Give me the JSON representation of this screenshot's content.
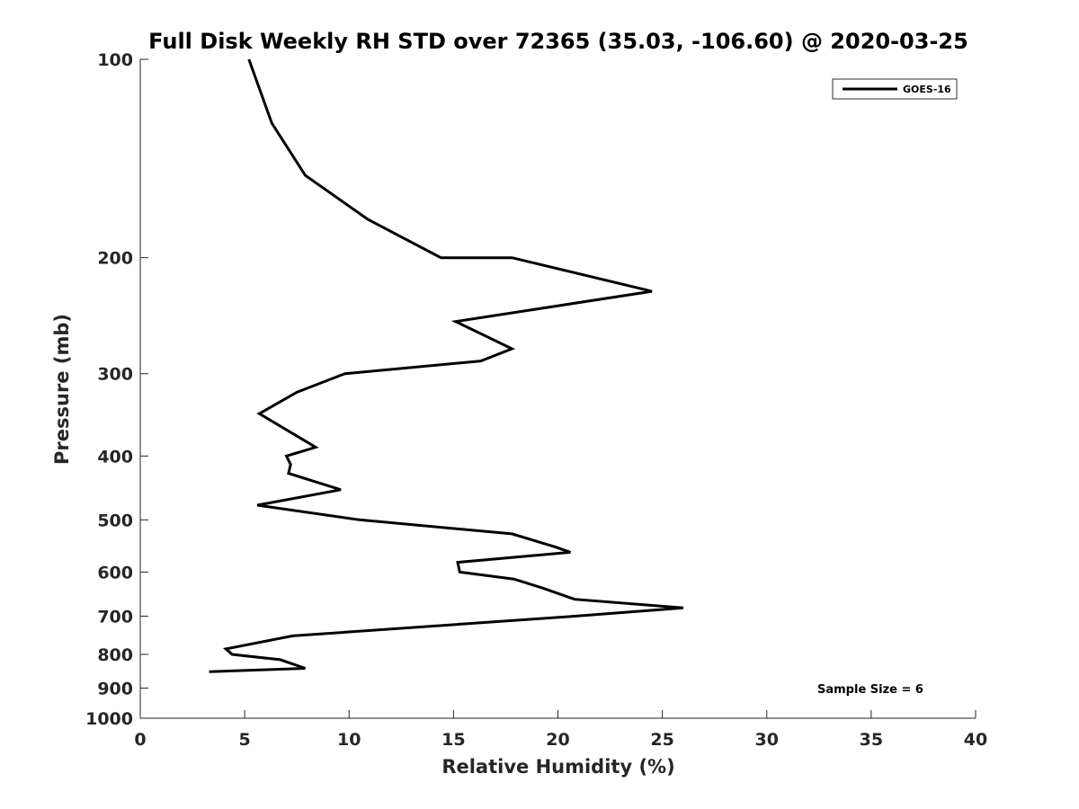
{
  "chart_data": {
    "type": "line",
    "title": "Full Disk Weekly RH STD over 72365 (35.03, -106.60) @ 2020-03-25",
    "xlabel": "Relative Humidity (%)",
    "ylabel": "Pressure (mb)",
    "xlim": [
      0,
      40
    ],
    "ylim": [
      100,
      1000
    ],
    "yscale": "log",
    "y_reversed": true,
    "grid": false,
    "x_ticks": [
      0,
      5,
      10,
      15,
      20,
      25,
      30,
      35,
      40
    ],
    "y_ticks": [
      100,
      200,
      300,
      400,
      500,
      600,
      700,
      800,
      900,
      1000
    ],
    "legend": {
      "position": "top-right",
      "entries": [
        "GOES-16"
      ]
    },
    "annotation": "Sample Size = 6",
    "series": [
      {
        "name": "GOES-16",
        "color": "#000000",
        "x": [
          5.2,
          6.3,
          7.9,
          10.9,
          14.4,
          17.8,
          24.5,
          15.1,
          17.8,
          16.3,
          9.8,
          7.5,
          5.7,
          8.4,
          7.0,
          7.2,
          7.1,
          9.6,
          5.6,
          10.5,
          17.8,
          19.9,
          20.6,
          15.2,
          15.3,
          17.9,
          19.3,
          20.8,
          26.0,
          20.8,
          7.3,
          4.1,
          4.4,
          6.7,
          7.9,
          3.3
        ],
        "y": [
          100,
          125,
          150,
          175,
          200,
          200,
          225,
          250,
          275,
          287,
          300,
          320,
          345,
          388,
          400,
          412,
          425,
          450,
          475,
          500,
          525,
          550,
          560,
          580,
          600,
          615,
          635,
          660,
          680,
          700,
          750,
          785,
          800,
          815,
          840,
          850
        ]
      }
    ]
  }
}
